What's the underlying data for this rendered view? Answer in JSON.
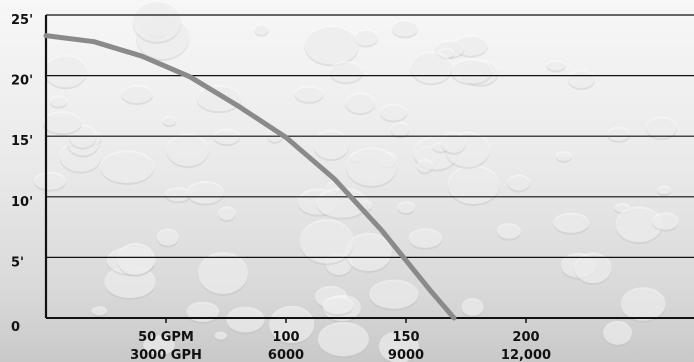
{
  "chart_data": {
    "type": "line",
    "x_axis_unit_labels": [
      "GPM",
      "GPH"
    ],
    "y_ticks": [
      {
        "value": 0,
        "label": "0"
      },
      {
        "value": 5,
        "label": "5'"
      },
      {
        "value": 10,
        "label": "10'"
      },
      {
        "value": 15,
        "label": "15'"
      },
      {
        "value": 20,
        "label": "20'"
      },
      {
        "value": 25,
        "label": "25'"
      }
    ],
    "x_ticks": [
      {
        "value": 50,
        "label_gpm": "50 GPM",
        "label_gph": "3000 GPH"
      },
      {
        "value": 100,
        "label_gpm": "100",
        "label_gph": "6000"
      },
      {
        "value": 150,
        "label_gpm": "150",
        "label_gph": "9000"
      },
      {
        "value": 200,
        "label_gpm": "200",
        "label_gph": "12,000"
      }
    ],
    "xlim": [
      0,
      270
    ],
    "ylim": [
      0,
      25
    ],
    "grid": true,
    "series": [
      {
        "color": "#8a8a8a",
        "x": [
          0,
          20,
          40,
          60,
          80,
          100,
          120,
          140,
          160,
          170
        ],
        "y": [
          23.3,
          22.8,
          21.6,
          19.9,
          17.5,
          14.9,
          11.5,
          7.2,
          2.3,
          0
        ]
      }
    ]
  }
}
